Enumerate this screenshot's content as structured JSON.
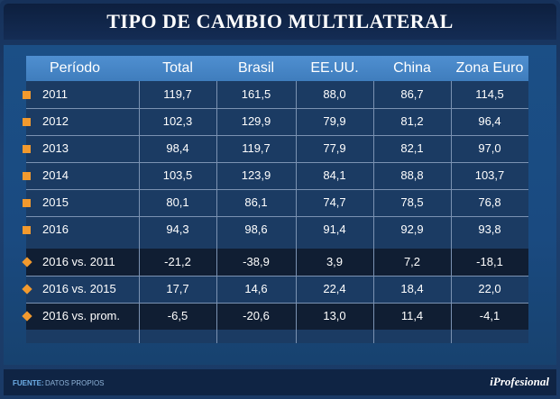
{
  "title": "TIPO DE CAMBIO MULTILATERAL",
  "headers": [
    "Período",
    "Total",
    "Brasil",
    "EE.UU.",
    "China",
    "Zona Euro"
  ],
  "rows": [
    {
      "cells": [
        "2011",
        "119,7",
        "161,5",
        "88,0",
        "86,7",
        "114,5"
      ],
      "bullet": "square"
    },
    {
      "cells": [
        "2012",
        "102,3",
        "129,9",
        "79,9",
        "81,2",
        "96,4"
      ],
      "bullet": "square"
    },
    {
      "cells": [
        "2013",
        "98,4",
        "119,7",
        "77,9",
        "82,1",
        "97,0"
      ],
      "bullet": "square"
    },
    {
      "cells": [
        "2014",
        "103,5",
        "123,9",
        "84,1",
        "88,8",
        "103,7"
      ],
      "bullet": "square"
    },
    {
      "cells": [
        "2015",
        "80,1",
        "86,1",
        "74,7",
        "78,5",
        "76,8"
      ],
      "bullet": "square"
    },
    {
      "cells": [
        "2016",
        "94,3",
        "98,6",
        "91,4",
        "92,9",
        "93,8"
      ],
      "bullet": "square"
    },
    {
      "cells": [
        "2016 vs. 2011",
        "-21,2",
        "-38,9",
        "3,9",
        "7,2",
        "-18,1"
      ],
      "bullet": "diamond"
    },
    {
      "cells": [
        "2016 vs. 2015",
        "17,7",
        "14,6",
        "22,4",
        "18,4",
        "22,0"
      ],
      "bullet": "diamond"
    },
    {
      "cells": [
        "2016 vs. prom.",
        "-6,5",
        "-20,6",
        "13,0",
        "11,4",
        "-4,1"
      ],
      "bullet": "diamond"
    }
  ],
  "footer": {
    "label": "FUENTE:",
    "text": "DATOS PROPIOS",
    "brand": "iProfesional"
  },
  "colors": {
    "accent": "#f29a2e",
    "header_bg": "#4a8acb",
    "dark_row": "#101e33"
  }
}
